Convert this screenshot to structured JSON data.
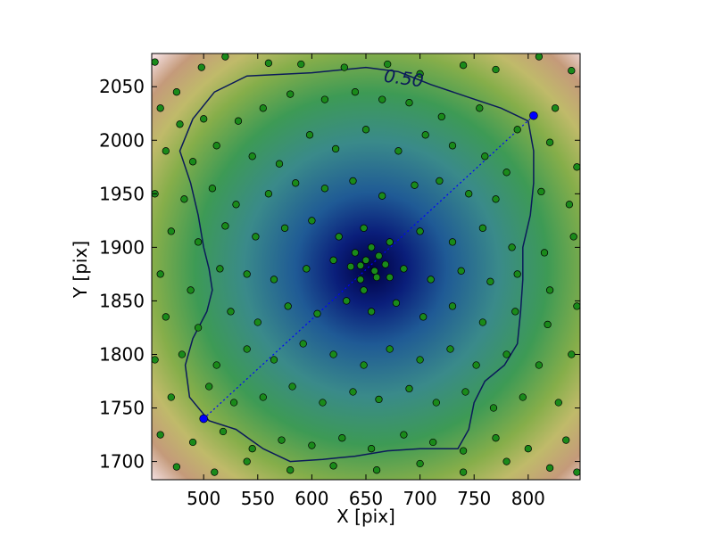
{
  "chart_data": {
    "type": "scatter",
    "title": "",
    "xlabel": "X [pix]",
    "ylabel": "Y [pix]",
    "xlim": [
      452,
      848
    ],
    "ylim": [
      1683,
      2081
    ],
    "xticks": [
      500,
      550,
      600,
      650,
      700,
      750,
      800
    ],
    "yticks": [
      1700,
      1750,
      1800,
      1850,
      1900,
      1950,
      2000,
      2050
    ],
    "grid": false,
    "legend": "none",
    "background": {
      "type": "heatmap",
      "colormap": "gist_earth",
      "center": [
        655,
        1880
      ]
    },
    "contour": {
      "level_label": "0.50",
      "label_position": [
        685,
        2058
      ],
      "color": "#0b1a5a",
      "points": [
        [
          540,
          2060
        ],
        [
          600,
          2063
        ],
        [
          650,
          2068
        ],
        [
          680,
          2064
        ],
        [
          710,
          2052
        ],
        [
          745,
          2040
        ],
        [
          775,
          2030
        ],
        [
          800,
          2018
        ],
        [
          805,
          1990
        ],
        [
          805,
          1960
        ],
        [
          802,
          1930
        ],
        [
          795,
          1900
        ],
        [
          795,
          1870
        ],
        [
          793,
          1840
        ],
        [
          790,
          1810
        ],
        [
          778,
          1790
        ],
        [
          760,
          1775
        ],
        [
          750,
          1755
        ],
        [
          745,
          1730
        ],
        [
          735,
          1712
        ],
        [
          700,
          1712
        ],
        [
          670,
          1710
        ],
        [
          640,
          1705
        ],
        [
          610,
          1702
        ],
        [
          580,
          1700
        ],
        [
          555,
          1712
        ],
        [
          530,
          1730
        ],
        [
          505,
          1738
        ],
        [
          487,
          1760
        ],
        [
          483,
          1790
        ],
        [
          490,
          1815
        ],
        [
          503,
          1840
        ],
        [
          508,
          1860
        ],
        [
          505,
          1880
        ],
        [
          500,
          1900
        ],
        [
          495,
          1930
        ],
        [
          488,
          1960
        ],
        [
          478,
          1990
        ],
        [
          490,
          2020
        ],
        [
          510,
          2045
        ],
        [
          540,
          2060
        ]
      ]
    },
    "segment": {
      "start": [
        500,
        1740
      ],
      "end": [
        805,
        2023
      ],
      "color": "#0000ff"
    },
    "colors": {
      "points": "#1a8a1a",
      "point_edge": "#000000",
      "contour": "#0b1a5a",
      "endpoints": "#0000ff"
    },
    "points": [
      [
        455,
        2073
      ],
      [
        475,
        2045
      ],
      [
        498,
        2068
      ],
      [
        520,
        2078
      ],
      [
        560,
        2072
      ],
      [
        590,
        2071
      ],
      [
        630,
        2068
      ],
      [
        670,
        2071
      ],
      [
        700,
        2062
      ],
      [
        740,
        2070
      ],
      [
        770,
        2066
      ],
      [
        810,
        2078
      ],
      [
        840,
        2065
      ],
      [
        460,
        2030
      ],
      [
        478,
        2015
      ],
      [
        500,
        2020
      ],
      [
        532,
        2018
      ],
      [
        555,
        2030
      ],
      [
        580,
        2043
      ],
      [
        612,
        2038
      ],
      [
        640,
        2045
      ],
      [
        665,
        2038
      ],
      [
        690,
        2035
      ],
      [
        720,
        2022
      ],
      [
        755,
        2030
      ],
      [
        790,
        2010
      ],
      [
        825,
        2030
      ],
      [
        465,
        1990
      ],
      [
        490,
        1980
      ],
      [
        512,
        1995
      ],
      [
        545,
        1985
      ],
      [
        570,
        1978
      ],
      [
        598,
        2005
      ],
      [
        622,
        1992
      ],
      [
        650,
        2010
      ],
      [
        680,
        1990
      ],
      [
        705,
        2005
      ],
      [
        730,
        1995
      ],
      [
        760,
        1985
      ],
      [
        780,
        1970
      ],
      [
        820,
        1998
      ],
      [
        845,
        1975
      ],
      [
        455,
        1950
      ],
      [
        482,
        1945
      ],
      [
        508,
        1955
      ],
      [
        530,
        1940
      ],
      [
        560,
        1950
      ],
      [
        585,
        1960
      ],
      [
        612,
        1955
      ],
      [
        638,
        1962
      ],
      [
        665,
        1948
      ],
      [
        695,
        1958
      ],
      [
        718,
        1962
      ],
      [
        745,
        1950
      ],
      [
        770,
        1945
      ],
      [
        812,
        1952
      ],
      [
        838,
        1940
      ],
      [
        470,
        1915
      ],
      [
        495,
        1905
      ],
      [
        520,
        1920
      ],
      [
        548,
        1910
      ],
      [
        575,
        1918
      ],
      [
        600,
        1925
      ],
      [
        625,
        1910
      ],
      [
        648,
        1918
      ],
      [
        672,
        1905
      ],
      [
        700,
        1915
      ],
      [
        730,
        1905
      ],
      [
        758,
        1918
      ],
      [
        785,
        1900
      ],
      [
        815,
        1895
      ],
      [
        842,
        1910
      ],
      [
        460,
        1875
      ],
      [
        488,
        1860
      ],
      [
        515,
        1880
      ],
      [
        540,
        1875
      ],
      [
        565,
        1870
      ],
      [
        595,
        1880
      ],
      [
        620,
        1888
      ],
      [
        645,
        1883
      ],
      [
        660,
        1872
      ],
      [
        685,
        1880
      ],
      [
        710,
        1870
      ],
      [
        738,
        1878
      ],
      [
        765,
        1868
      ],
      [
        790,
        1875
      ],
      [
        820,
        1860
      ],
      [
        465,
        1835
      ],
      [
        495,
        1825
      ],
      [
        525,
        1840
      ],
      [
        550,
        1830
      ],
      [
        578,
        1845
      ],
      [
        605,
        1838
      ],
      [
        632,
        1850
      ],
      [
        655,
        1840
      ],
      [
        678,
        1848
      ],
      [
        703,
        1835
      ],
      [
        730,
        1845
      ],
      [
        758,
        1830
      ],
      [
        788,
        1840
      ],
      [
        818,
        1828
      ],
      [
        845,
        1845
      ],
      [
        455,
        1795
      ],
      [
        480,
        1800
      ],
      [
        512,
        1790
      ],
      [
        540,
        1805
      ],
      [
        565,
        1795
      ],
      [
        592,
        1810
      ],
      [
        620,
        1800
      ],
      [
        648,
        1790
      ],
      [
        672,
        1805
      ],
      [
        700,
        1795
      ],
      [
        728,
        1805
      ],
      [
        752,
        1790
      ],
      [
        780,
        1800
      ],
      [
        810,
        1790
      ],
      [
        840,
        1800
      ],
      [
        470,
        1760
      ],
      [
        505,
        1770
      ],
      [
        528,
        1755
      ],
      [
        555,
        1760
      ],
      [
        582,
        1770
      ],
      [
        610,
        1755
      ],
      [
        638,
        1765
      ],
      [
        662,
        1758
      ],
      [
        690,
        1768
      ],
      [
        715,
        1755
      ],
      [
        742,
        1765
      ],
      [
        768,
        1750
      ],
      [
        795,
        1760
      ],
      [
        828,
        1755
      ],
      [
        460,
        1725
      ],
      [
        490,
        1718
      ],
      [
        518,
        1728
      ],
      [
        545,
        1712
      ],
      [
        572,
        1720
      ],
      [
        600,
        1715
      ],
      [
        628,
        1722
      ],
      [
        655,
        1712
      ],
      [
        685,
        1725
      ],
      [
        712,
        1718
      ],
      [
        740,
        1710
      ],
      [
        770,
        1722
      ],
      [
        800,
        1712
      ],
      [
        835,
        1720
      ],
      [
        475,
        1695
      ],
      [
        510,
        1690
      ],
      [
        540,
        1700
      ],
      [
        580,
        1692
      ],
      [
        620,
        1696
      ],
      [
        660,
        1692
      ],
      [
        700,
        1698
      ],
      [
        740,
        1690
      ],
      [
        780,
        1700
      ],
      [
        820,
        1694
      ],
      [
        845,
        1690
      ],
      [
        640,
        1895
      ],
      [
        650,
        1888
      ],
      [
        662,
        1892
      ],
      [
        658,
        1878
      ],
      [
        645,
        1870
      ],
      [
        668,
        1884
      ],
      [
        655,
        1900
      ],
      [
        636,
        1882
      ],
      [
        672,
        1872
      ],
      [
        648,
        1860
      ]
    ]
  }
}
